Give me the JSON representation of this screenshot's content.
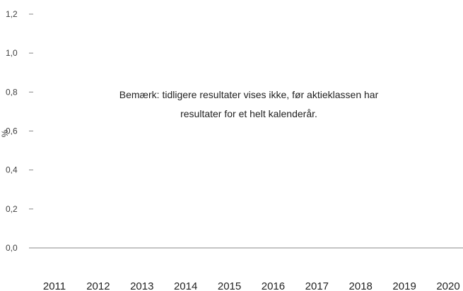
{
  "chart_data": {
    "type": "bar",
    "categories": [
      "2011",
      "2012",
      "2013",
      "2014",
      "2015",
      "2016",
      "2017",
      "2018",
      "2019",
      "2020"
    ],
    "series": [],
    "ylabel": "%",
    "ylim": [
      0,
      1.2
    ],
    "yticks": [
      "0,0",
      "0,2",
      "0,4",
      "0,6",
      "0,8",
      "1,0",
      "1,2"
    ],
    "grid": false,
    "annotation": {
      "line1": "Bemærk: tidligere resultater vises ikke, før aktieklassen har",
      "line2": "resultater for et helt kalenderår."
    },
    "colors": {
      "axis": "#888888",
      "tick_text": "#404040"
    }
  }
}
